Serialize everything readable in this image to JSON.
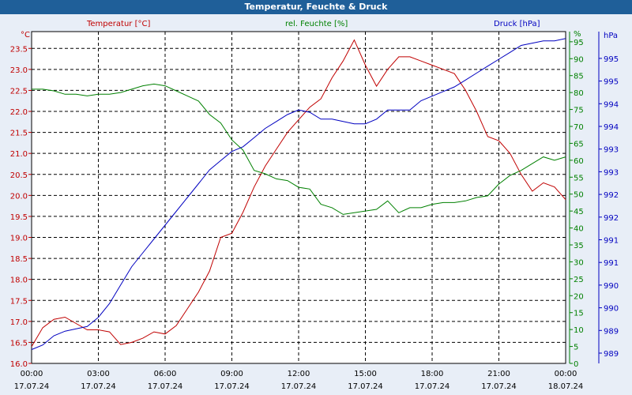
{
  "chart_data": {
    "type": "line",
    "title": "Temperatur, Feuchte & Druck",
    "axes": {
      "temperature": {
        "unit": "°C",
        "label": "Temperatur [°C]",
        "range": [
          16.0,
          23.9
        ],
        "ticks": [
          "16.0",
          "16.5",
          "17.0",
          "17.5",
          "18.0",
          "18.5",
          "19.0",
          "19.5",
          "20.0",
          "20.5",
          "21.0",
          "21.5",
          "22.0",
          "22.5",
          "23.0",
          "23.5"
        ],
        "color": "#c00000"
      },
      "humidity": {
        "unit": "%",
        "label": "rel. Feuchte [%]",
        "range": [
          0,
          98
        ],
        "ticks": [
          "0",
          "5",
          "10",
          "15",
          "20",
          "25",
          "30",
          "35",
          "40",
          "45",
          "50",
          "55",
          "60",
          "65",
          "70",
          "75",
          "80",
          "85",
          "90",
          "95",
          "%"
        ],
        "color": "#008000"
      },
      "pressure": {
        "unit": "hPa",
        "label": "Druck [hPa]",
        "range": [
          988.5,
          995.7
        ],
        "ticks": [
          "989",
          "989",
          "990",
          "990",
          "991",
          "991",
          "992",
          "992",
          "993",
          "993",
          "994",
          "994",
          "995",
          "995",
          "hPa"
        ],
        "color": "#0000c0"
      }
    },
    "x_ticks": [
      {
        "time": "00:00",
        "date": "17.07.24"
      },
      {
        "time": "03:00",
        "date": "17.07.24"
      },
      {
        "time": "06:00",
        "date": "17.07.24"
      },
      {
        "time": "09:00",
        "date": "17.07.24"
      },
      {
        "time": "12:00",
        "date": "17.07.24"
      },
      {
        "time": "15:00",
        "date": "17.07.24"
      },
      {
        "time": "18:00",
        "date": "17.07.24"
      },
      {
        "time": "21:00",
        "date": "17.07.24"
      },
      {
        "time": "00:00",
        "date": "18.07.24"
      }
    ],
    "x_hours_range": [
      0,
      24
    ],
    "grid": true,
    "series": [
      {
        "name": "Temperatur [°C]",
        "axis": "temperature",
        "color": "#c00000",
        "x": [
          0,
          0.5,
          1,
          1.5,
          2,
          2.5,
          3,
          3.5,
          4,
          4.5,
          5,
          5.5,
          6,
          6.5,
          7,
          7.5,
          8,
          8.5,
          9,
          9.5,
          10,
          10.5,
          11,
          11.5,
          12,
          12.5,
          13,
          13.5,
          14,
          14.5,
          15,
          15.5,
          16,
          16.5,
          17,
          17.5,
          18,
          18.5,
          19,
          19.5,
          20,
          20.5,
          21,
          21.5,
          22,
          22.5,
          23,
          23.5,
          24
        ],
        "values": [
          16.4,
          16.85,
          17.05,
          17.1,
          16.95,
          16.8,
          16.8,
          16.75,
          16.45,
          16.5,
          16.6,
          16.75,
          16.7,
          16.9,
          17.3,
          17.7,
          18.2,
          19.0,
          19.1,
          19.6,
          20.2,
          20.7,
          21.1,
          21.5,
          21.8,
          22.1,
          22.3,
          22.8,
          23.2,
          23.7,
          23.1,
          22.6,
          23.0,
          23.3,
          23.3,
          23.2,
          23.1,
          23.0,
          22.9,
          22.5,
          22.0,
          21.4,
          21.3,
          21.0,
          20.5,
          20.1,
          20.3,
          20.2,
          19.9
        ]
      },
      {
        "name": "rel. Feuchte [%]",
        "axis": "humidity",
        "color": "#008000",
        "x": [
          0,
          0.5,
          1,
          1.5,
          2,
          2.5,
          3,
          3.5,
          4,
          4.5,
          5,
          5.5,
          6,
          6.5,
          7,
          7.5,
          8,
          8.5,
          9,
          9.5,
          10,
          10.5,
          11,
          11.5,
          12,
          12.5,
          13,
          13.5,
          14,
          14.5,
          15,
          15.5,
          16,
          16.5,
          17,
          17.5,
          18,
          18.5,
          19,
          19.5,
          20,
          20.5,
          21,
          21.5,
          22,
          22.5,
          23,
          23.5,
          24
        ],
        "values": [
          81,
          81,
          80.5,
          79.5,
          79.5,
          79,
          79.5,
          79.5,
          80,
          81,
          82,
          82.5,
          82,
          80.5,
          79,
          77.5,
          73.5,
          71,
          66,
          63,
          57,
          56,
          54.5,
          54,
          52,
          51.5,
          47,
          46,
          44,
          44.5,
          45,
          45.5,
          48,
          44.5,
          46,
          46,
          47,
          47.5,
          47.5,
          48,
          49,
          49.5,
          53,
          55.5,
          57,
          59,
          61,
          60,
          61
        ]
      },
      {
        "name": "Druck [hPa]",
        "axis": "pressure",
        "color": "#0000c0",
        "x": [
          0,
          0.5,
          1,
          1.5,
          2,
          2.5,
          3,
          3.5,
          4,
          4.5,
          5,
          5.5,
          6,
          6.5,
          7,
          7.5,
          8,
          8.5,
          9,
          9.5,
          10,
          10.5,
          11,
          11.5,
          12,
          12.5,
          13,
          13.5,
          14,
          14.5,
          15,
          15.5,
          16,
          16.5,
          17,
          17.5,
          18,
          18.5,
          19,
          19.5,
          20,
          20.5,
          21,
          21.5,
          22,
          22.5,
          23,
          23.5,
          24
        ],
        "values": [
          988.8,
          988.9,
          989.1,
          989.2,
          989.25,
          989.3,
          989.5,
          989.8,
          990.2,
          990.6,
          990.9,
          991.2,
          991.5,
          991.8,
          992.1,
          992.4,
          992.7,
          992.9,
          993.1,
          993.2,
          993.4,
          993.6,
          993.75,
          993.9,
          994.0,
          993.95,
          993.8,
          993.8,
          993.75,
          993.7,
          993.7,
          993.8,
          994.0,
          994.0,
          994.0,
          994.2,
          994.3,
          994.4,
          994.5,
          994.65,
          994.8,
          994.95,
          995.1,
          995.25,
          995.4,
          995.45,
          995.5,
          995.5,
          995.55
        ]
      }
    ]
  }
}
